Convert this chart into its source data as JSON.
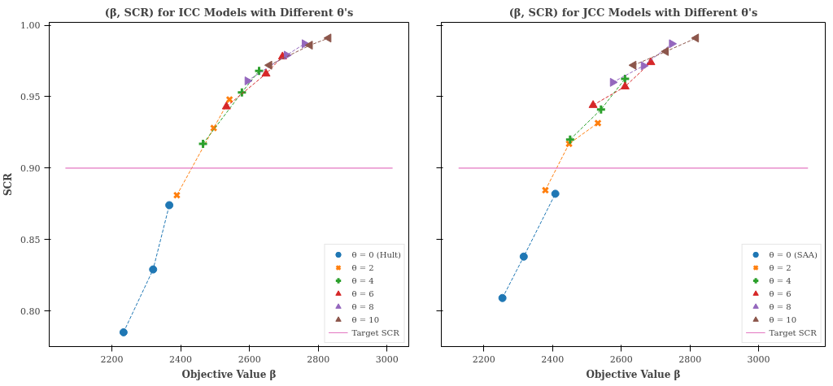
{
  "chart_data": [
    {
      "type": "line",
      "title": "(β, SCR) for ICC Models with Different θ's",
      "xlabel": "Objective Value β",
      "ylabel": "SCR",
      "xlim": [
        2018,
        3063
      ],
      "ylim": [
        0.775,
        1.002
      ],
      "xticks": [
        2200,
        2400,
        2600,
        2800,
        3000
      ],
      "yticks": [
        {
          "value": 0.8,
          "label": "0.80"
        },
        {
          "value": 0.85,
          "label": "0.85"
        },
        {
          "value": 0.9,
          "label": "0.90"
        },
        {
          "value": 0.95,
          "label": "0.95"
        },
        {
          "value": 1.0,
          "label": "1.00"
        }
      ],
      "grid": false,
      "legend": "bottom right",
      "line_style": "dashed",
      "ref_lines": [
        {
          "axis": "y",
          "value": 0.9,
          "label": "Target SCR",
          "color": "#e377c2"
        }
      ],
      "series": [
        {
          "name": "θ = 0 (Hult)",
          "color": "#1f77b4",
          "marker": "circle",
          "x": [
            2234,
            2320,
            2367
          ],
          "values": [
            0.785,
            0.829,
            0.874
          ]
        },
        {
          "name": "θ = 2",
          "color": "#ff7f0e",
          "marker": "x",
          "x": [
            2389,
            2496,
            2542
          ],
          "values": [
            0.881,
            0.928,
            0.948
          ]
        },
        {
          "name": "θ = 4",
          "color": "#2ca02c",
          "marker": "cross",
          "x": [
            2465,
            2578,
            2628
          ],
          "values": [
            0.917,
            0.953,
            0.968
          ]
        },
        {
          "name": "θ = 6",
          "color": "#d62728",
          "marker": "triangle",
          "x": [
            2533,
            2648,
            2696
          ],
          "values": [
            0.943,
            0.966,
            0.978
          ]
        },
        {
          "name": "θ = 8",
          "color": "#9467bd",
          "marker": "triangle_right",
          "x": [
            2594,
            2708,
            2760
          ],
          "values": [
            0.961,
            0.979,
            0.987
          ]
        },
        {
          "name": "θ = 10",
          "color": "#8c564b",
          "marker": "triangle_left",
          "x": [
            2658,
            2776,
            2830
          ],
          "values": [
            0.972,
            0.986,
            0.991
          ]
        }
      ]
    },
    {
      "type": "line",
      "title": "(β, SCR) for JCC Models with Different θ's",
      "xlabel": "Objective Value β",
      "xlim": [
        2076,
        3194
      ],
      "ylim": [
        0.775,
        1.002
      ],
      "xticks": [
        2200,
        2400,
        2600,
        2800,
        3000
      ],
      "yticks": [
        {
          "value": 0.8,
          "label": null
        },
        {
          "value": 0.85,
          "label": null
        },
        {
          "value": 0.9,
          "label": null
        },
        {
          "value": 0.95,
          "label": null
        },
        {
          "value": 1.0,
          "label": null
        }
      ],
      "tick_labels": "x",
      "grid": false,
      "legend": "bottom right",
      "line_style": "dashed",
      "ref_lines": [
        {
          "axis": "y",
          "value": 0.9,
          "label": "Target SCR",
          "color": "#e377c2"
        }
      ],
      "series": [
        {
          "name": "θ = 0 (SAA)",
          "color": "#1f77b4",
          "marker": "circle",
          "x": [
            2254,
            2316,
            2408
          ],
          "values": [
            0.809,
            0.838,
            0.882
          ]
        },
        {
          "name": "θ = 2",
          "color": "#ff7f0e",
          "marker": "x",
          "x": [
            2379,
            2448,
            2532
          ],
          "values": [
            0.8845,
            0.917,
            0.9315
          ]
        },
        {
          "name": "θ = 4",
          "color": "#2ca02c",
          "marker": "cross",
          "x": [
            2451,
            2541,
            2611
          ],
          "values": [
            0.92,
            0.941,
            0.9625
          ]
        },
        {
          "name": "θ = 6",
          "color": "#d62728",
          "marker": "triangle",
          "x": [
            2518,
            2611,
            2686
          ],
          "values": [
            0.944,
            0.957,
            0.974
          ]
        },
        {
          "name": "θ = 8",
          "color": "#9467bd",
          "marker": "triangle_right",
          "x": [
            2575,
            2665,
            2747
          ],
          "values": [
            0.96,
            0.9716,
            0.987
          ]
        },
        {
          "name": "θ = 10",
          "color": "#8c564b",
          "marker": "triangle_left",
          "x": [
            2636,
            2730,
            2818
          ],
          "values": [
            0.972,
            0.9816,
            0.991
          ]
        }
      ]
    }
  ]
}
